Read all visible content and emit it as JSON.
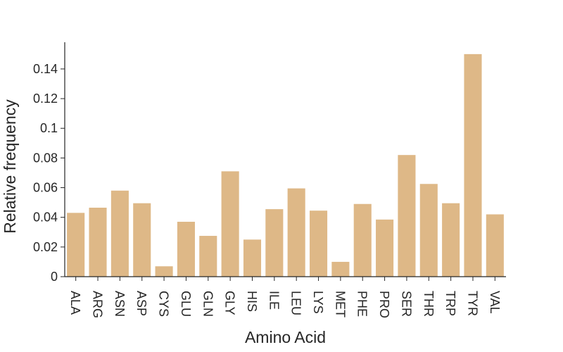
{
  "chart_data": {
    "type": "bar",
    "title": "",
    "xlabel": "Amino Acid",
    "ylabel": "Relative frequency",
    "categories": [
      "ALA",
      "ARG",
      "ASN",
      "ASP",
      "CYS",
      "GLU",
      "GLN",
      "GLY",
      "HIS",
      "ILE",
      "LEU",
      "LYS",
      "MET",
      "PHE",
      "PRO",
      "SER",
      "THR",
      "TRP",
      "TYR",
      "VAL"
    ],
    "values": [
      0.043,
      0.0465,
      0.058,
      0.0495,
      0.007,
      0.037,
      0.0275,
      0.071,
      0.025,
      0.0455,
      0.0595,
      0.0445,
      0.01,
      0.049,
      0.0385,
      0.082,
      0.0625,
      0.0495,
      0.15,
      0.042
    ],
    "ylim": [
      0,
      0.158
    ],
    "yticks": [
      0,
      0.02,
      0.04,
      0.06,
      0.08,
      0.1,
      0.12,
      0.14
    ],
    "ytick_labels": [
      "0",
      "0.02",
      "0.04",
      "0.06",
      "0.08",
      "0.1",
      "0.12",
      "0.14"
    ],
    "bar_color": "#deb887",
    "grid": false,
    "legend": "none"
  }
}
